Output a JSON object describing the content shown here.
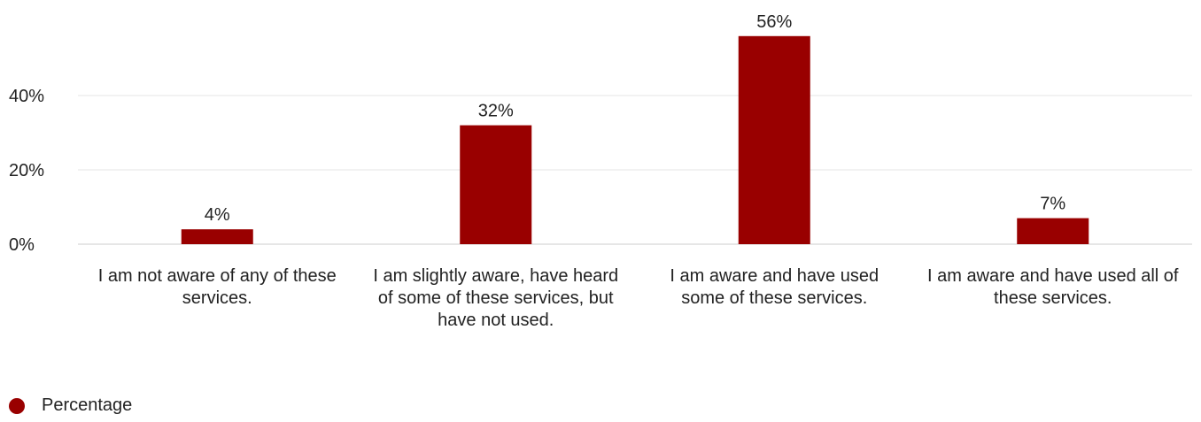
{
  "chart_data": {
    "type": "bar",
    "categories": [
      "I am not aware of any of these services.",
      "I am slightly aware, have heard of some of these services, but have not used.",
      "I am aware and have used some of these services.",
      "I am aware and have used all of these services."
    ],
    "series": [
      {
        "name": "Percentage",
        "values": [
          4,
          32,
          56,
          7
        ],
        "color": "#990000"
      }
    ],
    "data_labels": [
      "4%",
      "32%",
      "56%",
      "7%"
    ],
    "yticks": [
      "0%",
      "20%",
      "40%"
    ],
    "ytick_values": [
      0,
      20,
      40
    ],
    "ylim": [
      0,
      60
    ],
    "grid": true,
    "legend_placement": "bottom-left",
    "title": "",
    "xlabel": "",
    "ylabel": ""
  },
  "legend": {
    "label": "Percentage",
    "color": "#990000"
  }
}
